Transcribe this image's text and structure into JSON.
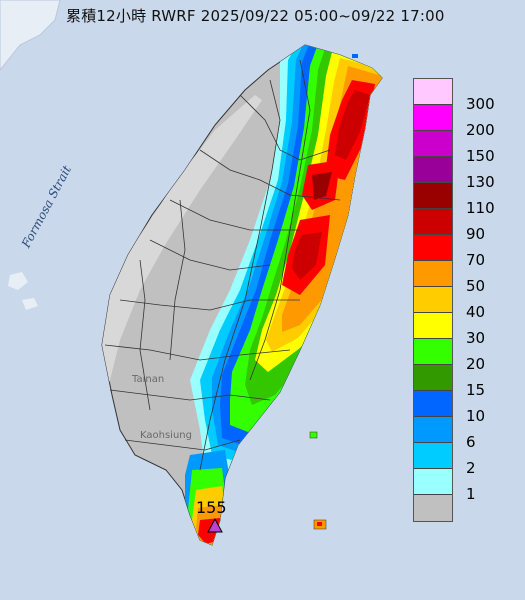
{
  "map": {
    "title": "累積12小時 RWRF 2025/09/22 05:00~09/22 17:00",
    "strait_label": "Formosa Strait",
    "places": [
      "Tainan",
      "Kaohsiung"
    ],
    "max_station_value": "155",
    "max_marker_color": "#c040d0"
  },
  "legend": {
    "entries": [
      {
        "label": "300",
        "color": "#ffc8ff"
      },
      {
        "label": "200",
        "color": "#ff00ff"
      },
      {
        "label": "150",
        "color": "#cc00cc"
      },
      {
        "label": "130",
        "color": "#990099"
      },
      {
        "label": "110",
        "color": "#990000"
      },
      {
        "label": "90",
        "color": "#cc0000"
      },
      {
        "label": "70",
        "color": "#ff0000"
      },
      {
        "label": "50",
        "color": "#ff9900"
      },
      {
        "label": "40",
        "color": "#ffcc00"
      },
      {
        "label": "30",
        "color": "#ffff00"
      },
      {
        "label": "20",
        "color": "#33ff00"
      },
      {
        "label": "15",
        "color": "#339900"
      },
      {
        "label": "10",
        "color": "#0066ff"
      },
      {
        "label": "6",
        "color": "#0099ff"
      },
      {
        "label": "2",
        "color": "#00ccff"
      },
      {
        "label": "1",
        "color": "#99ffff"
      },
      {
        "label": "",
        "color": "#c0c0c0"
      }
    ]
  },
  "colors": {
    "sea": "#c9d8ea",
    "land_no_rain": "#c0c0c0",
    "land_dry_relief": "#d8d8d8",
    "boundary": "#333333"
  }
}
